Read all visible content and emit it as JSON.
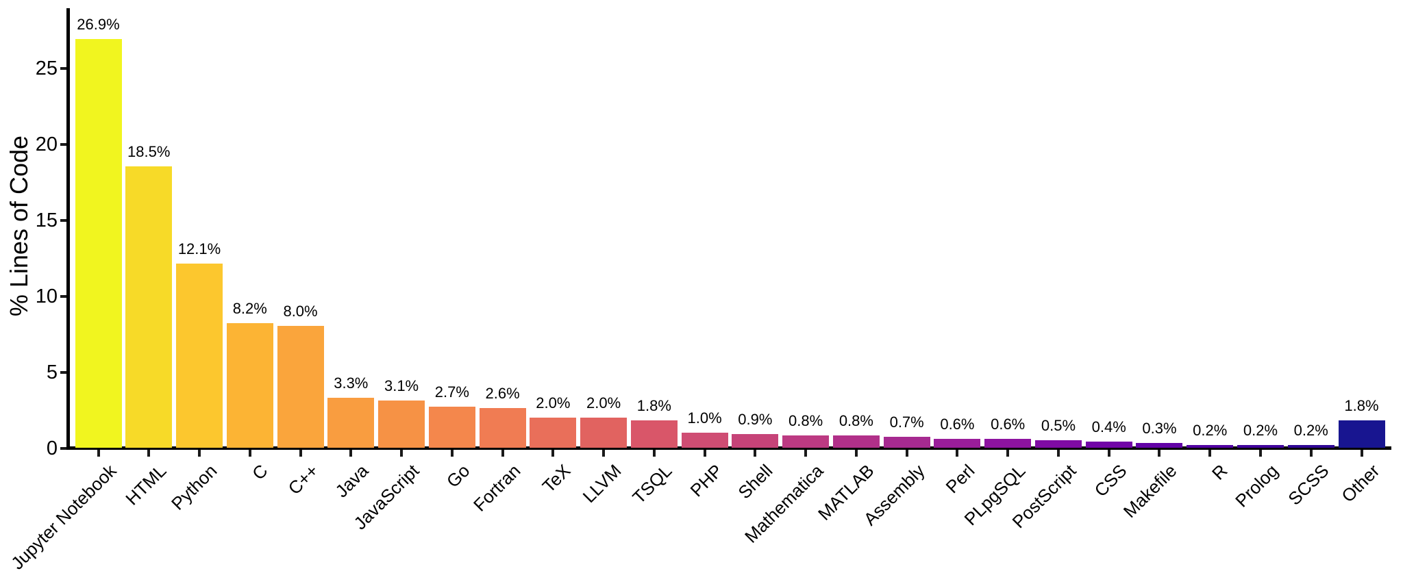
{
  "chart_data": {
    "type": "bar",
    "title": "",
    "xlabel": "",
    "ylabel": "% Lines of Code",
    "ylim": [
      0,
      29
    ],
    "yticks": [
      0,
      5,
      10,
      15,
      20,
      25
    ],
    "grid": false,
    "legend": null,
    "categories": [
      "Jupyter Notebook",
      "HTML",
      "Python",
      "C",
      "C++",
      "Java",
      "JavaScript",
      "Go",
      "Fortran",
      "TeX",
      "LLVM",
      "TSQL",
      "PHP",
      "Shell",
      "Mathematica",
      "MATLAB",
      "Assembly",
      "Perl",
      "PLpgSQL",
      "PostScript",
      "CSS",
      "Makefile",
      "R",
      "Prolog",
      "SCSS",
      "Other"
    ],
    "values": [
      26.9,
      18.5,
      12.1,
      8.2,
      8.0,
      3.3,
      3.1,
      2.7,
      2.6,
      2.0,
      2.0,
      1.8,
      1.0,
      0.9,
      0.8,
      0.8,
      0.7,
      0.6,
      0.6,
      0.5,
      0.4,
      0.3,
      0.2,
      0.2,
      0.2,
      1.8
    ],
    "value_labels": [
      "26.9%",
      "18.5%",
      "12.1%",
      "8.2%",
      "8.0%",
      "3.3%",
      "3.1%",
      "2.7%",
      "2.6%",
      "2.0%",
      "2.0%",
      "1.8%",
      "1.0%",
      "0.9%",
      "0.8%",
      "0.8%",
      "0.7%",
      "0.6%",
      "0.6%",
      "0.5%",
      "0.4%",
      "0.3%",
      "0.2%",
      "0.2%",
      "0.2%",
      "1.8%"
    ],
    "bar_colors": [
      "#f1f51f",
      "#f7da28",
      "#fcc72e",
      "#fcb434",
      "#faa53c",
      "#f99d40",
      "#f69245",
      "#f4874c",
      "#f07c53",
      "#e96f5a",
      "#e16360",
      "#d95669",
      "#cf4d73",
      "#c64378",
      "#bc3a82",
      "#b13089",
      "#a62a90",
      "#9a1d9a",
      "#8d13a0",
      "#7f0ba4",
      "#7105a7",
      "#6202a6",
      "#5203a2",
      "#41049c",
      "#2f0694",
      "#181590"
    ],
    "colormap": "plasma_r",
    "axis_color": "#000000",
    "text_color": "#000000",
    "background_color": "#ffffff"
  }
}
